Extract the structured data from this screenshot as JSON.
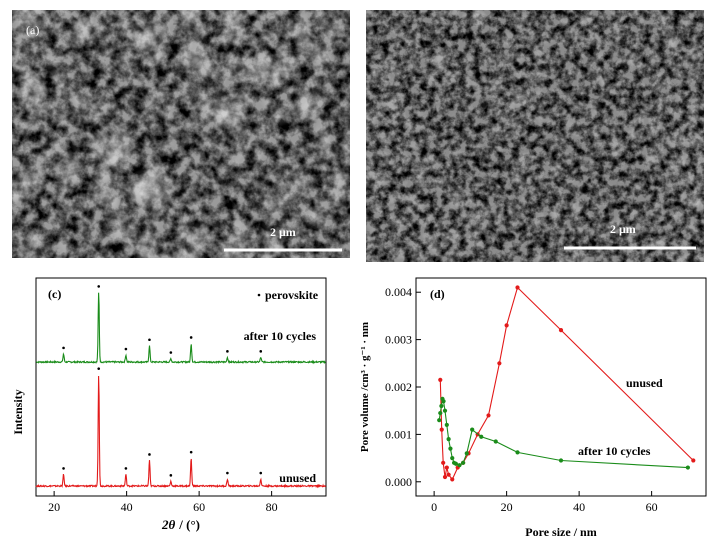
{
  "sem_a": {
    "label": "(a)",
    "scale_text": "2 μm"
  },
  "sem_b": {
    "label": "",
    "scale_text": "2 μm"
  },
  "chart_data": [
    {
      "type": "line",
      "panel_label": "(c)",
      "xlabel_symbol": "2θ",
      "xlabel_unit": "/ (°)",
      "ylabel": "Intensity",
      "xlim": [
        15,
        95
      ],
      "xticks": [
        20,
        40,
        60,
        80
      ],
      "legend_text": "perovskite",
      "peak_positions": [
        22.6,
        32.3,
        39.8,
        46.3,
        52.2,
        57.8,
        67.8,
        77.0
      ],
      "series": [
        {
          "name": "after 10 cycles",
          "color": "#1a8c1a",
          "baseline": 1.0,
          "peaks": [
            [
              22.6,
              0.07
            ],
            [
              32.3,
              0.6
            ],
            [
              39.8,
              0.06
            ],
            [
              46.3,
              0.14
            ],
            [
              52.2,
              0.03
            ],
            [
              57.8,
              0.16
            ],
            [
              67.8,
              0.04
            ],
            [
              77.0,
              0.04
            ]
          ]
        },
        {
          "name": "unused",
          "color": "#e31a1a",
          "baseline": 0,
          "peaks": [
            [
              22.6,
              0.1
            ],
            [
              32.3,
              0.96
            ],
            [
              39.8,
              0.1
            ],
            [
              46.3,
              0.22
            ],
            [
              52.2,
              0.04
            ],
            [
              57.8,
              0.24
            ],
            [
              67.8,
              0.06
            ],
            [
              77.0,
              0.06
            ]
          ]
        }
      ]
    },
    {
      "type": "line",
      "panel_label": "(d)",
      "xlabel": "Pore size / nm",
      "ylabel": "Pore volume /cm³ · g⁻¹ · nm",
      "xlim": [
        -5,
        75
      ],
      "ylim": [
        -0.0003,
        0.0043
      ],
      "xticks": [
        0,
        20,
        40,
        60
      ],
      "yticks": [
        0.0,
        0.001,
        0.002,
        0.003,
        0.004
      ],
      "ytick_labels": [
        "0.000",
        "0.001",
        "0.002",
        "0.003",
        "0.004"
      ],
      "series": [
        {
          "name": "unused",
          "color": "#e31a1a",
          "points": [
            [
              1.7,
              0.00215
            ],
            [
              2.1,
              0.0011
            ],
            [
              2.5,
              0.0004
            ],
            [
              3.0,
              0.0001
            ],
            [
              3.5,
              0.0003
            ],
            [
              4.0,
              0.00015
            ],
            [
              5.0,
              5e-05
            ],
            [
              6.5,
              0.0003
            ],
            [
              8.0,
              0.0004
            ],
            [
              9.5,
              0.0006
            ],
            [
              12,
              0.001
            ],
            [
              15,
              0.0014
            ],
            [
              18,
              0.0025
            ],
            [
              20,
              0.0033
            ],
            [
              23,
              0.0041
            ],
            [
              35,
              0.0032
            ],
            [
              71.5,
              0.00045
            ]
          ]
        },
        {
          "name": "after 10 cycles",
          "color": "#1a8c1a",
          "points": [
            [
              1.4,
              0.0013
            ],
            [
              1.7,
              0.00145
            ],
            [
              2.0,
              0.0016
            ],
            [
              2.3,
              0.00175
            ],
            [
              2.6,
              0.0017
            ],
            [
              3.0,
              0.0015
            ],
            [
              3.5,
              0.0012
            ],
            [
              4.0,
              0.0009
            ],
            [
              4.5,
              0.0007
            ],
            [
              5.0,
              0.0005
            ],
            [
              5.5,
              0.0004
            ],
            [
              6.0,
              0.00038
            ],
            [
              7.0,
              0.00035
            ],
            [
              8.0,
              0.0004
            ],
            [
              9.0,
              0.0006
            ],
            [
              10.5,
              0.0011
            ],
            [
              13,
              0.00095
            ],
            [
              17,
              0.00085
            ],
            [
              23,
              0.00062
            ],
            [
              35,
              0.00045
            ],
            [
              70,
              0.0003
            ]
          ]
        }
      ]
    }
  ]
}
